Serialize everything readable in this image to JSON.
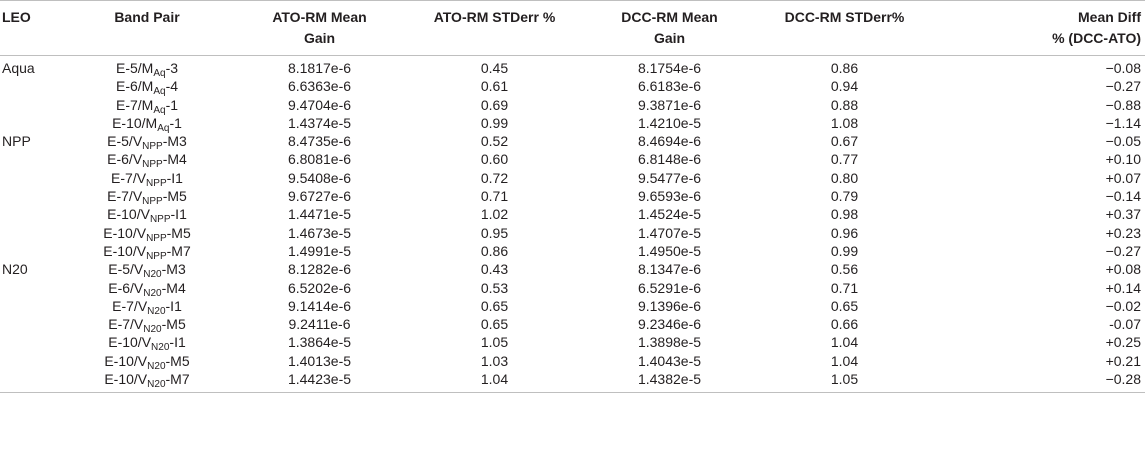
{
  "headers": {
    "leo": "LEO",
    "band_pair": "Band Pair",
    "ato_gain_line1": "ATO-RM Mean",
    "ato_gain_line2": "Gain",
    "ato_std": "ATO-RM STDerr %",
    "dcc_gain_line1": "DCC-RM Mean",
    "dcc_gain_line2": "Gain",
    "dcc_std": "DCC-RM STDerr%",
    "diff_line1": "Mean Diff",
    "diff_line2": "% (DCC-ATO)"
  },
  "rows": [
    {
      "leo": "Aqua",
      "band": {
        "pre": "E-5/M",
        "sub": "Aq",
        "post": "-3"
      },
      "ato_gain": "8.1817e-6",
      "ato_std": "0.45",
      "dcc_gain": "8.1754e-6",
      "dcc_std": "0.86",
      "diff": "−0.08"
    },
    {
      "leo": "",
      "band": {
        "pre": "E-6/M",
        "sub": "Aq",
        "post": "-4"
      },
      "ato_gain": "6.6363e-6",
      "ato_std": "0.61",
      "dcc_gain": "6.6183e-6",
      "dcc_std": "0.94",
      "diff": "−0.27"
    },
    {
      "leo": "",
      "band": {
        "pre": "E-7/M",
        "sub": "Aq",
        "post": "-1"
      },
      "ato_gain": "9.4704e-6",
      "ato_std": "0.69",
      "dcc_gain": "9.3871e-6",
      "dcc_std": "0.88",
      "diff": "−0.88"
    },
    {
      "leo": "",
      "band": {
        "pre": "E-10/M",
        "sub": "Aq",
        "post": "-1"
      },
      "ato_gain": "1.4374e-5",
      "ato_std": "0.99",
      "dcc_gain": "1.4210e-5",
      "dcc_std": "1.08",
      "diff": "−1.14"
    },
    {
      "leo": "NPP",
      "band": {
        "pre": "E-5/V",
        "sub": "NPP",
        "post": "-M3"
      },
      "ato_gain": "8.4735e-6",
      "ato_std": "0.52",
      "dcc_gain": "8.4694e-6",
      "dcc_std": "0.67",
      "diff": "−0.05"
    },
    {
      "leo": "",
      "band": {
        "pre": "E-6/V",
        "sub": "NPP",
        "post": "-M4"
      },
      "ato_gain": "6.8081e-6",
      "ato_std": "0.60",
      "dcc_gain": "6.8148e-6",
      "dcc_std": "0.77",
      "diff": "+0.10"
    },
    {
      "leo": "",
      "band": {
        "pre": "E-7/V",
        "sub": "NPP",
        "post": "-I1"
      },
      "ato_gain": "9.5408e-6",
      "ato_std": "0.72",
      "dcc_gain": "9.5477e-6",
      "dcc_std": "0.80",
      "diff": "+0.07"
    },
    {
      "leo": "",
      "band": {
        "pre": "E-7/V",
        "sub": "NPP",
        "post": "-M5"
      },
      "ato_gain": "9.6727e-6",
      "ato_std": "0.71",
      "dcc_gain": "9.6593e-6",
      "dcc_std": "0.79",
      "diff": "−0.14"
    },
    {
      "leo": "",
      "band": {
        "pre": "E-10/V",
        "sub": "NPP",
        "post": "-I1"
      },
      "ato_gain": "1.4471e-5",
      "ato_std": "1.02",
      "dcc_gain": "1.4524e-5",
      "dcc_std": "0.98",
      "diff": "+0.37"
    },
    {
      "leo": "",
      "band": {
        "pre": "E-10/V",
        "sub": "NPP",
        "post": "-M5"
      },
      "ato_gain": "1.4673e-5",
      "ato_std": "0.95",
      "dcc_gain": "1.4707e-5",
      "dcc_std": "0.96",
      "diff": "+0.23"
    },
    {
      "leo": "",
      "band": {
        "pre": "E-10/V",
        "sub": "NPP",
        "post": "-M7"
      },
      "ato_gain": "1.4991e-5",
      "ato_std": "0.86",
      "dcc_gain": "1.4950e-5",
      "dcc_std": "0.99",
      "diff": "−0.27"
    },
    {
      "leo": "N20",
      "band": {
        "pre": "E-5/V",
        "sub": "N20",
        "post": "-M3"
      },
      "ato_gain": "8.1282e-6",
      "ato_std": "0.43",
      "dcc_gain": "8.1347e-6",
      "dcc_std": "0.56",
      "diff": "+0.08"
    },
    {
      "leo": "",
      "band": {
        "pre": "E-6/V",
        "sub": "N20",
        "post": "-M4"
      },
      "ato_gain": "6.5202e-6",
      "ato_std": "0.53",
      "dcc_gain": "6.5291e-6",
      "dcc_std": "0.71",
      "diff": "+0.14"
    },
    {
      "leo": "",
      "band": {
        "pre": "E-7/V",
        "sub": "N20",
        "post": "-I1"
      },
      "ato_gain": "9.1414e-6",
      "ato_std": "0.65",
      "dcc_gain": "9.1396e-6",
      "dcc_std": "0.65",
      "diff": "−0.02"
    },
    {
      "leo": "",
      "band": {
        "pre": "E-7/V",
        "sub": "N20",
        "post": "-M5"
      },
      "ato_gain": "9.2411e-6",
      "ato_std": "0.65",
      "dcc_gain": "9.2346e-6",
      "dcc_std": "0.66",
      "diff": "-0.07"
    },
    {
      "leo": "",
      "band": {
        "pre": "E-10/V",
        "sub": "N20",
        "post": "-I1"
      },
      "ato_gain": "1.3864e-5",
      "ato_std": "1.05",
      "dcc_gain": "1.3898e-5",
      "dcc_std": "1.04",
      "diff": "+0.25"
    },
    {
      "leo": "",
      "band": {
        "pre": "E-10/V",
        "sub": "N20",
        "post": "-M5"
      },
      "ato_gain": "1.4013e-5",
      "ato_std": "1.03",
      "dcc_gain": "1.4043e-5",
      "dcc_std": "1.04",
      "diff": "+0.21"
    },
    {
      "leo": "",
      "band": {
        "pre": "E-10/V",
        "sub": "N20",
        "post": "-M7"
      },
      "ato_gain": "1.4423e-5",
      "ato_std": "1.04",
      "dcc_gain": "1.4382e-5",
      "dcc_std": "1.05",
      "diff": "−0.28"
    }
  ]
}
